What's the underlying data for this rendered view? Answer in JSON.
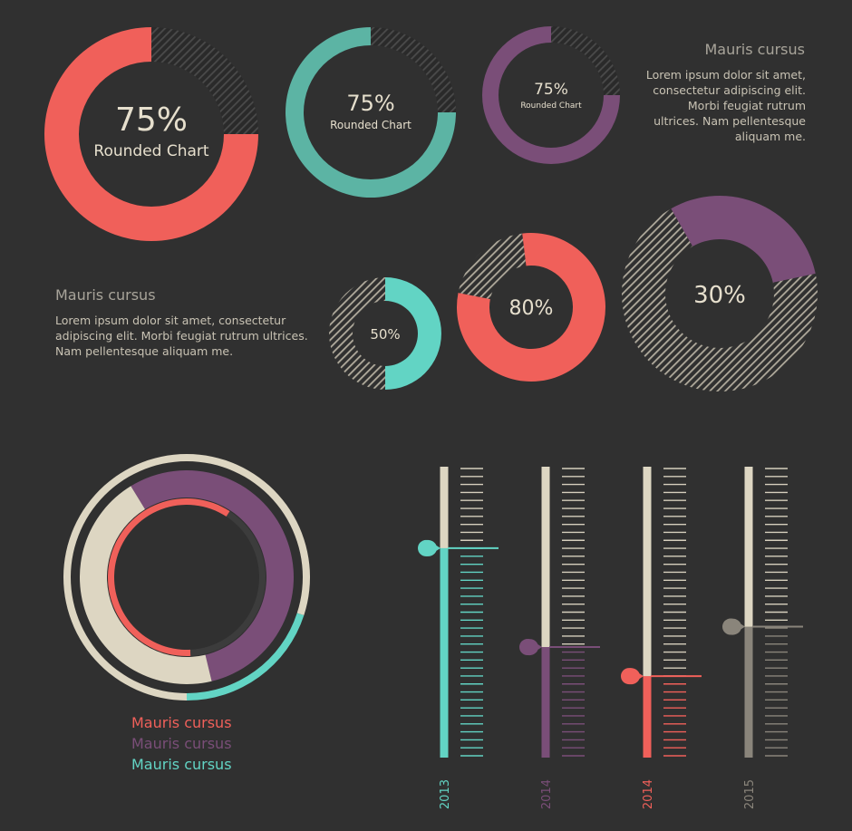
{
  "colors": {
    "background": "#303030",
    "coral": "#f0605a",
    "teal": "#5cb4a4",
    "mint": "#62d4c4",
    "purple": "#7a4e78",
    "beige": "#ddd6c2",
    "gray": "#8a857b",
    "dark_ring": "#3c3c3c",
    "stripe": "#b0aa9c"
  },
  "text_blocks": {
    "top_right": {
      "heading": "Mauris cursus",
      "body": [
        "Lorem ipsum dolor sit amet,",
        "consectetur adipiscing elit.",
        "Morbi feugiat rutrum",
        "ultrices. Nam pellentesque",
        "aliquam me."
      ]
    },
    "middle_left": {
      "heading": "Mauris cursus",
      "body": [
        "Lorem ipsum dolor sit amet, consectetur",
        "adipiscing elit. Morbi feugiat rutrum ultrices.",
        "Nam pellentesque aliquam me."
      ]
    }
  },
  "legend": [
    {
      "label": "Mauris cursus",
      "color": "#f0605a"
    },
    {
      "label": "Mauris cursus",
      "color": "#7a4e78"
    },
    {
      "label": "Mauris cursus",
      "color": "#62d4c4"
    }
  ],
  "chart_data": [
    {
      "type": "pie",
      "variant": "donut",
      "value_percent": 75,
      "label": "75%",
      "sublabel": "Rounded Chart",
      "color": "#f0605a"
    },
    {
      "type": "pie",
      "variant": "donut",
      "value_percent": 75,
      "label": "75%",
      "sublabel": "Rounded Chart",
      "color": "#5cb4a4"
    },
    {
      "type": "pie",
      "variant": "donut",
      "value_percent": 75,
      "label": "75%",
      "sublabel": "Rounded Chart",
      "color": "#7a4e78"
    },
    {
      "type": "pie",
      "variant": "donut",
      "value_percent": 50,
      "label": "50%",
      "color": "#62d4c4"
    },
    {
      "type": "pie",
      "variant": "donut",
      "value_percent": 80,
      "label": "80%",
      "color": "#f0605a"
    },
    {
      "type": "pie",
      "variant": "donut",
      "value_percent": 30,
      "label": "30%",
      "color": "#7a4e78"
    },
    {
      "type": "pie",
      "variant": "concentric-rings",
      "rings": [
        {
          "name": "outer",
          "segments": [
            {
              "color": "#ddd6c2",
              "percent": 80
            },
            {
              "color": "#62d4c4",
              "percent": 20
            }
          ]
        },
        {
          "name": "middle",
          "segments": [
            {
              "color": "#7a4e78",
              "percent": 55
            },
            {
              "color": "#ddd6c2",
              "percent": 45
            }
          ]
        },
        {
          "name": "inner",
          "segments": [
            {
              "color": "#f0605a",
              "percent": 60
            },
            {
              "color": "#3c3c3c",
              "percent": 40
            }
          ]
        }
      ]
    },
    {
      "type": "bar",
      "variant": "vertical-thermometer",
      "categories": [
        "2013",
        "2014",
        "2014",
        "2015"
      ],
      "values": [
        72,
        38,
        28,
        45
      ],
      "colors": [
        "#62d4c4",
        "#7a4e78",
        "#f0605a",
        "#8a857b"
      ],
      "ylim": [
        0,
        100
      ]
    }
  ]
}
